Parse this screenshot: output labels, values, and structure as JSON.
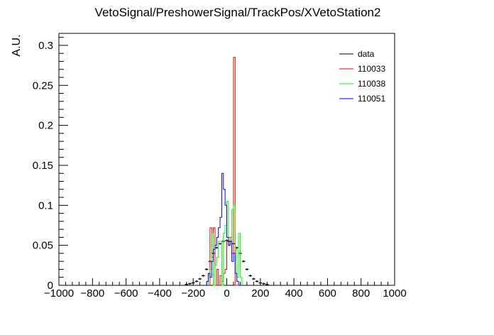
{
  "chart_data": {
    "type": "step-histogram",
    "title": "VetoSignal/PreshowerSignal/TrackPos/XVetoStation2",
    "xlabel": "",
    "ylabel": "A.U.",
    "xlim": [
      -1000,
      1000
    ],
    "ylim": [
      0,
      0.315
    ],
    "x_ticks": [
      -1000,
      -800,
      -600,
      -400,
      -200,
      0,
      200,
      400,
      600,
      800,
      1000
    ],
    "y_ticks": [
      0,
      0.05,
      0.1,
      0.15,
      0.2,
      0.25,
      0.3
    ],
    "x_tick_labels": [
      "−1000",
      "−800",
      "−600",
      "−400",
      "−200",
      "0",
      "200",
      "400",
      "600",
      "800",
      "1000"
    ],
    "y_tick_labels": [
      "0",
      "0.05",
      "0.1",
      "0.15",
      "0.2",
      "0.25",
      "0.3"
    ],
    "grid": false,
    "legend_position": "top-right",
    "legend": [
      "data",
      "110033",
      "110038",
      "110051"
    ],
    "data_series": {
      "name": "data",
      "color": "#000000",
      "style": "points",
      "bin_width": 20,
      "x": [
        -240,
        -220,
        -200,
        -180,
        -160,
        -140,
        -120,
        -100,
        -80,
        -60,
        -40,
        -20,
        0,
        20,
        40,
        60,
        80,
        100,
        120,
        140,
        160,
        180,
        200,
        220,
        240
      ],
      "y": [
        0.001,
        0.002,
        0.003,
        0.005,
        0.008,
        0.012,
        0.02,
        0.03,
        0.04,
        0.047,
        0.052,
        0.055,
        0.056,
        0.055,
        0.052,
        0.047,
        0.04,
        0.03,
        0.02,
        0.012,
        0.008,
        0.005,
        0.003,
        0.002,
        0.001
      ]
    },
    "series": [
      {
        "name": "110033",
        "color": "#ff0000",
        "bin_edges": [
          -100,
          -90,
          -80,
          -70,
          -60,
          -50,
          -40,
          -30,
          -20,
          -10,
          0,
          10,
          20,
          30,
          40,
          50,
          60,
          70,
          80
        ],
        "values": [
          0.072,
          0.035,
          0.072,
          0.0,
          0.02,
          0.0,
          0.012,
          0.005,
          0.015,
          0.02,
          0.055,
          0.05,
          0.06,
          0.04,
          0.285,
          0.0,
          0.0,
          0.0
        ]
      },
      {
        "name": "110038",
        "color": "#00ff00",
        "bin_edges": [
          -110,
          -100,
          -90,
          -80,
          -70,
          -60,
          -50,
          -40,
          -30,
          -20,
          -10,
          0,
          10,
          20,
          30,
          40,
          50,
          60,
          70,
          80,
          90
        ],
        "values": [
          0.015,
          0.02,
          0.065,
          0.0,
          0.025,
          0.035,
          0.055,
          0.055,
          0.0,
          0.065,
          0.075,
          0.105,
          0.06,
          0.055,
          0.095,
          0.1,
          0.045,
          0.01,
          0.065,
          0.01
        ]
      },
      {
        "name": "110051",
        "color": "#0000ff",
        "bin_edges": [
          -120,
          -110,
          -100,
          -90,
          -80,
          -70,
          -60,
          -50,
          -40,
          -30,
          -20,
          -10,
          0,
          10,
          20,
          30,
          40,
          50,
          60,
          70,
          80
        ],
        "values": [
          0.005,
          0.015,
          0.01,
          0.03,
          0.045,
          0.05,
          0.06,
          0.072,
          0.085,
          0.14,
          0.12,
          0.1,
          0.06,
          0.05,
          0.055,
          0.03,
          0.04,
          0.015,
          0.005,
          0.0
        ]
      }
    ]
  }
}
